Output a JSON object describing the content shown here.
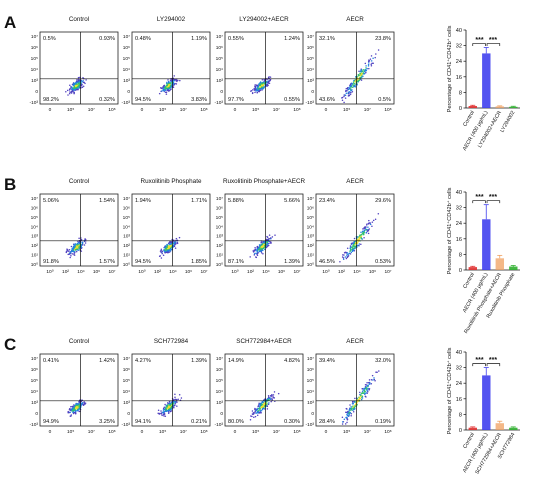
{
  "chart_data": [
    {
      "panel": "A",
      "flow_plots": [
        {
          "title": "Control",
          "quadrants": {
            "ul": "0.5%",
            "ur": "0.93%",
            "ll": "98.2%",
            "lr": "0.32%"
          }
        },
        {
          "title": "LY294002",
          "quadrants": {
            "ul": "0.48%",
            "ur": "1.19%",
            "ll": "94.5%",
            "lr": "3.83%"
          }
        },
        {
          "title": "LY294002+AECR",
          "quadrants": {
            "ul": "0.55%",
            "ur": "1.24%",
            "ll": "97.7%",
            "lr": "0.55%"
          }
        },
        {
          "title": "AECR",
          "quadrants": {
            "ul": "32.1%",
            "ur": "23.8%",
            "ll": "43.6%",
            "lr": "0.5%"
          }
        }
      ],
      "flow_axes": {
        "y_ticks": [
          "10⁷",
          "10⁶",
          "10⁵",
          "10⁴",
          "10³",
          "0",
          "-10³"
        ],
        "x_ticks": [
          "0",
          "10⁵",
          "10⁷",
          "10⁸"
        ]
      },
      "bar": {
        "type": "bar",
        "ylabel": "Percentage of CD41⁺CD42b⁺ cells",
        "ylim": [
          0,
          40
        ],
        "yticks": [
          0,
          8,
          16,
          24,
          32,
          40
        ],
        "categories": [
          "Control",
          "AECR (400 μg/mL)",
          "LY294002+AECR",
          "LY294002"
        ],
        "values": [
          1.0,
          28.0,
          0.8,
          0.6
        ],
        "errors": [
          0.4,
          3.0,
          0.3,
          0.3
        ],
        "colors": [
          "#e03030",
          "#4040ee",
          "#f0a060",
          "#30b030"
        ],
        "significance": [
          "***",
          "***"
        ]
      }
    },
    {
      "panel": "B",
      "flow_plots": [
        {
          "title": "Control",
          "quadrants": {
            "ul": "5.06%",
            "ur": "1.54%",
            "ll": "91.8%",
            "lr": "1.57%"
          }
        },
        {
          "title": "Ruxolitinib Phosphate",
          "quadrants": {
            "ul": "1.94%",
            "ur": "1.71%",
            "ll": "94.5%",
            "lr": "1.85%"
          }
        },
        {
          "title": "Ruxolitinib Phosphate+AECR",
          "quadrants": {
            "ul": "5.88%",
            "ur": "5.66%",
            "ll": "87.1%",
            "lr": "1.39%"
          }
        },
        {
          "title": "AECR",
          "quadrants": {
            "ul": "23.4%",
            "ur": "29.6%",
            "ll": "46.5%",
            "lr": "0.53%"
          }
        }
      ],
      "flow_axes": {
        "y_ticks": [
          "10⁷",
          "10⁶",
          "10⁵",
          "10⁴",
          "10³",
          "10²",
          "10¹",
          "10⁰"
        ],
        "x_ticks": [
          "10⁰",
          "10²",
          "10⁴",
          "10⁶",
          "10⁷"
        ]
      },
      "bar": {
        "type": "bar",
        "ylabel": "Percentage of CD41⁺CD42b⁺ cells",
        "ylim": [
          0,
          40
        ],
        "yticks": [
          0,
          8,
          16,
          24,
          32,
          40
        ],
        "categories": [
          "Control",
          "AECR (400 μg/mL)",
          "Ruxolitinib Phosphate+AECR",
          "Ruxolitinib Phosphate"
        ],
        "values": [
          1.5,
          26.0,
          6.0,
          1.8
        ],
        "errors": [
          0.4,
          7.5,
          1.5,
          0.5
        ],
        "colors": [
          "#e03030",
          "#4040ee",
          "#f0a060",
          "#30b030"
        ],
        "significance": [
          "***",
          "***"
        ]
      }
    },
    {
      "panel": "C",
      "flow_plots": [
        {
          "title": "Control",
          "quadrants": {
            "ul": "0.41%",
            "ur": "1.42%",
            "ll": "94.9%",
            "lr": "3.25%"
          }
        },
        {
          "title": "SCH772984",
          "quadrants": {
            "ul": "4.27%",
            "ur": "1.39%",
            "ll": "94.1%",
            "lr": "0.21%"
          }
        },
        {
          "title": "SCH772984+AECR",
          "quadrants": {
            "ul": "14.9%",
            "ur": "4.82%",
            "ll": "80.0%",
            "lr": "0.30%"
          }
        },
        {
          "title": "AECR",
          "quadrants": {
            "ul": "39.4%",
            "ur": "32.0%",
            "ll": "28.4%",
            "lr": "0.19%"
          }
        }
      ],
      "flow_axes": {
        "y_ticks": [
          "10⁷",
          "10⁶",
          "10⁵",
          "10⁴",
          "10³",
          "0",
          "-10³"
        ],
        "x_ticks": [
          "0",
          "10⁵",
          "10⁷",
          "10⁸"
        ]
      },
      "bar": {
        "type": "bar",
        "ylabel": "Percentage of CD41⁺CD42b⁺ cells",
        "ylim": [
          0,
          40
        ],
        "yticks": [
          0,
          8,
          16,
          24,
          32,
          40
        ],
        "categories": [
          "Control",
          "AECR (400 μg/mL)",
          "SCH772984+AECR",
          "SCH772984"
        ],
        "values": [
          1.2,
          28.0,
          3.5,
          1.2
        ],
        "errors": [
          0.4,
          4.0,
          1.0,
          0.4
        ],
        "colors": [
          "#e03030",
          "#4040ee",
          "#f0a060",
          "#30b030"
        ],
        "significance": [
          "***",
          "***"
        ]
      }
    }
  ]
}
